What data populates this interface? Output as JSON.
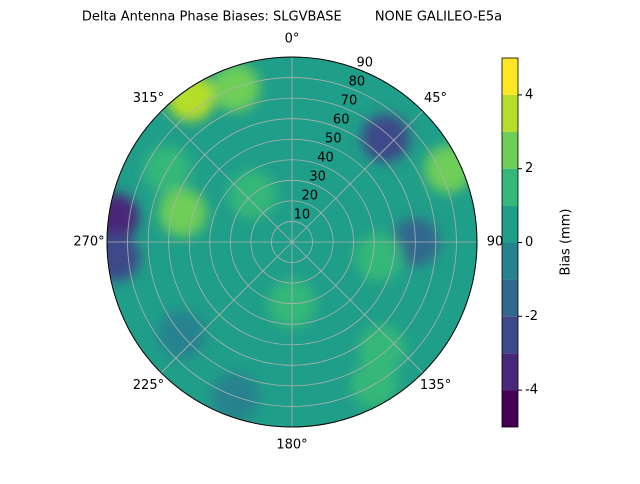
{
  "chart_data": {
    "type": "polar-contour",
    "title": "Delta Antenna Phase Biases: SLGVBASE        NONE GALILEO-E5a",
    "rlim": [
      0,
      90
    ],
    "rticks": [
      10,
      20,
      30,
      40,
      50,
      60,
      70,
      80,
      90
    ],
    "thetaticks": [
      {
        "value": 0,
        "label": "0°"
      },
      {
        "value": 45,
        "label": "45°"
      },
      90,
      {
        "value": 135,
        "label": "135°"
      },
      {
        "value": 180,
        "label": "180°"
      },
      {
        "value": 225,
        "label": "225°"
      },
      {
        "value": 270,
        "label": "270°"
      },
      {
        "value": 315,
        "label": "315°"
      }
    ],
    "grid": true,
    "colorbar": {
      "label": "Bias (mm)",
      "levels": [
        -5,
        -4,
        -3,
        -2,
        -1,
        0,
        1,
        2,
        3,
        4,
        5
      ],
      "colors": [
        "#440154",
        "#482878",
        "#3e4989",
        "#31688e",
        "#26828e",
        "#1f9e89",
        "#35b779",
        "#6ece58",
        "#b5de2b",
        "#fde725"
      ],
      "ticks": [
        -4,
        -2,
        0,
        2,
        4
      ],
      "lim": [
        -5,
        5
      ]
    },
    "background_value": 0.5,
    "field": [
      {
        "azimuth": 325,
        "elevation": 86,
        "value": 3.5
      },
      {
        "azimuth": 340,
        "elevation": 80,
        "value": 2.5
      },
      {
        "azimuth": 300,
        "elevation": 70,
        "value": 1.5
      },
      {
        "azimuth": 285,
        "elevation": 55,
        "value": 2.5
      },
      {
        "azimuth": 278,
        "elevation": 87,
        "value": -3.5
      },
      {
        "azimuth": 265,
        "elevation": 86,
        "value": -2.5
      },
      {
        "azimuth": 65,
        "elevation": 84,
        "value": 2.5
      },
      {
        "azimuth": 42,
        "elevation": 68,
        "value": -2.5
      },
      {
        "azimuth": 90,
        "elevation": 60,
        "value": -1.5
      },
      {
        "azimuth": 100,
        "elevation": 43,
        "value": 1.5
      },
      {
        "azimuth": 140,
        "elevation": 68,
        "value": 1.5
      },
      {
        "azimuth": 150,
        "elevation": 80,
        "value": 1.5
      },
      {
        "azimuth": 180,
        "elevation": 30,
        "value": 1.5
      },
      {
        "azimuth": 320,
        "elevation": 30,
        "value": 1.5
      },
      {
        "azimuth": 230,
        "elevation": 70,
        "value": -0.5
      },
      {
        "azimuth": 200,
        "elevation": 80,
        "value": -0.5
      }
    ]
  }
}
